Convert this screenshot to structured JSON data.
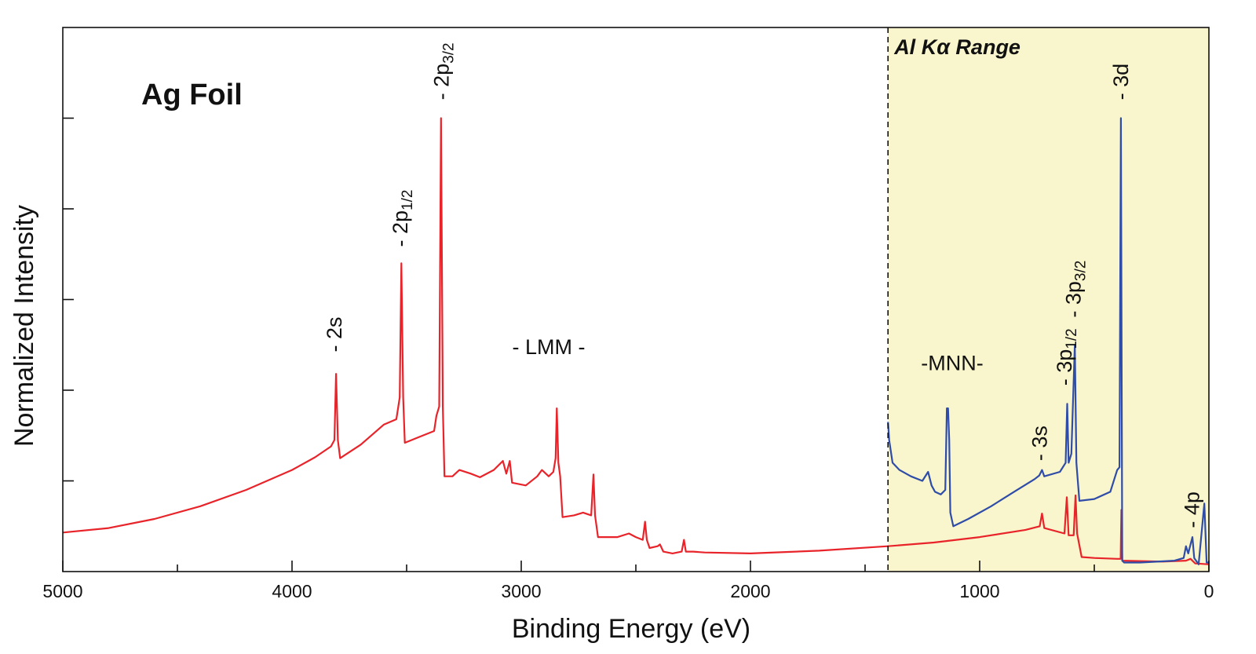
{
  "chart_data": {
    "type": "line",
    "title": "",
    "sample_label": "Ag Foil",
    "xlabel": "Binding Energy (eV)",
    "ylabel": "Normalized Intensity",
    "xlim": [
      5000,
      0
    ],
    "ylim": [
      0,
      6
    ],
    "x_ticks": [
      "5000",
      "4000",
      "3000",
      "2000",
      "1000",
      "0"
    ],
    "x_tick_values": [
      5000,
      4000,
      3000,
      2000,
      1000,
      0
    ],
    "y_tick_labels_shown": false,
    "grid": false,
    "highlight_region": {
      "label": "Al Kα Range",
      "x_from": 1400,
      "x_to": 0,
      "color": "#f9f5cc"
    },
    "series": [
      {
        "color": "#e8242a",
        "points": [
          [
            5000,
            0.43
          ],
          [
            4800,
            0.48
          ],
          [
            4600,
            0.58
          ],
          [
            4400,
            0.72
          ],
          [
            4200,
            0.9
          ],
          [
            4000,
            1.12
          ],
          [
            3900,
            1.26
          ],
          [
            3830,
            1.38
          ],
          [
            3815,
            1.45
          ],
          [
            3808,
            2.18
          ],
          [
            3800,
            1.45
          ],
          [
            3790,
            1.25
          ],
          [
            3700,
            1.4
          ],
          [
            3600,
            1.62
          ],
          [
            3545,
            1.68
          ],
          [
            3530,
            1.92
          ],
          [
            3523,
            3.4
          ],
          [
            3515,
            1.92
          ],
          [
            3508,
            1.42
          ],
          [
            3450,
            1.48
          ],
          [
            3380,
            1.55
          ],
          [
            3370,
            1.72
          ],
          [
            3358,
            1.82
          ],
          [
            3350,
            5.0
          ],
          [
            3342,
            1.82
          ],
          [
            3335,
            1.05
          ],
          [
            3300,
            1.05
          ],
          [
            3270,
            1.12
          ],
          [
            3220,
            1.08
          ],
          [
            3180,
            1.04
          ],
          [
            3120,
            1.12
          ],
          [
            3080,
            1.22
          ],
          [
            3065,
            1.08
          ],
          [
            3050,
            1.22
          ],
          [
            3040,
            0.98
          ],
          [
            2980,
            0.95
          ],
          [
            2930,
            1.05
          ],
          [
            2910,
            1.12
          ],
          [
            2880,
            1.05
          ],
          [
            2860,
            1.1
          ],
          [
            2850,
            1.25
          ],
          [
            2845,
            1.8
          ],
          [
            2838,
            1.2
          ],
          [
            2830,
            1.05
          ],
          [
            2820,
            0.6
          ],
          [
            2770,
            0.62
          ],
          [
            2730,
            0.65
          ],
          [
            2695,
            0.62
          ],
          [
            2685,
            1.07
          ],
          [
            2678,
            0.62
          ],
          [
            2665,
            0.38
          ],
          [
            2580,
            0.38
          ],
          [
            2530,
            0.42
          ],
          [
            2500,
            0.38
          ],
          [
            2470,
            0.35
          ],
          [
            2460,
            0.55
          ],
          [
            2452,
            0.35
          ],
          [
            2440,
            0.26
          ],
          [
            2405,
            0.28
          ],
          [
            2395,
            0.3
          ],
          [
            2380,
            0.22
          ],
          [
            2340,
            0.2
          ],
          [
            2300,
            0.22
          ],
          [
            2290,
            0.35
          ],
          [
            2282,
            0.22
          ],
          [
            2250,
            0.22
          ],
          [
            2200,
            0.21
          ],
          [
            2000,
            0.2
          ],
          [
            1700,
            0.23
          ],
          [
            1400,
            0.28
          ],
          [
            1200,
            0.32
          ],
          [
            1000,
            0.38
          ],
          [
            800,
            0.46
          ],
          [
            738,
            0.5
          ],
          [
            728,
            0.64
          ],
          [
            718,
            0.48
          ],
          [
            630,
            0.42
          ],
          [
            620,
            0.82
          ],
          [
            612,
            0.4
          ],
          [
            590,
            0.4
          ],
          [
            582,
            0.84
          ],
          [
            575,
            0.42
          ],
          [
            555,
            0.16
          ],
          [
            500,
            0.15
          ],
          [
            400,
            0.14
          ],
          [
            385,
            0.14
          ],
          [
            382,
            0.68
          ],
          [
            378,
            0.12
          ],
          [
            200,
            0.11
          ],
          [
            100,
            0.12
          ],
          [
            80,
            0.14
          ],
          [
            60,
            0.09
          ],
          [
            0,
            0.08
          ]
        ]
      },
      {
        "color": "#2e4ca8",
        "points": [
          [
            1400,
            1.65
          ],
          [
            1395,
            1.45
          ],
          [
            1380,
            1.2
          ],
          [
            1350,
            1.12
          ],
          [
            1300,
            1.05
          ],
          [
            1250,
            1.0
          ],
          [
            1225,
            1.1
          ],
          [
            1210,
            0.95
          ],
          [
            1195,
            0.88
          ],
          [
            1170,
            0.85
          ],
          [
            1150,
            0.9
          ],
          [
            1143,
            1.8
          ],
          [
            1138,
            1.8
          ],
          [
            1133,
            1.45
          ],
          [
            1128,
            0.65
          ],
          [
            1115,
            0.5
          ],
          [
            1050,
            0.58
          ],
          [
            950,
            0.72
          ],
          [
            850,
            0.88
          ],
          [
            760,
            1.02
          ],
          [
            740,
            1.06
          ],
          [
            728,
            1.12
          ],
          [
            718,
            1.05
          ],
          [
            650,
            1.1
          ],
          [
            625,
            1.2
          ],
          [
            618,
            1.85
          ],
          [
            612,
            1.2
          ],
          [
            600,
            1.3
          ],
          [
            585,
            2.5
          ],
          [
            578,
            1.2
          ],
          [
            565,
            0.78
          ],
          [
            500,
            0.8
          ],
          [
            430,
            0.88
          ],
          [
            400,
            1.12
          ],
          [
            390,
            1.15
          ],
          [
            384,
            5.0
          ],
          [
            378,
            0.12
          ],
          [
            370,
            0.1
          ],
          [
            300,
            0.1
          ],
          [
            150,
            0.12
          ],
          [
            110,
            0.15
          ],
          [
            100,
            0.28
          ],
          [
            90,
            0.2
          ],
          [
            80,
            0.3
          ],
          [
            72,
            0.38
          ],
          [
            64,
            0.15
          ],
          [
            45,
            0.08
          ],
          [
            20,
            0.75
          ],
          [
            10,
            0.1
          ],
          [
            0,
            0.1
          ]
        ]
      }
    ],
    "annotations": [
      {
        "text": "- 2s",
        "x": 3815,
        "y": 2.42,
        "rotated": true
      },
      {
        "text": "- 2p",
        "sub": "1/2",
        "x": 3528,
        "y": 3.58,
        "rotated": true
      },
      {
        "text": "- 2p",
        "sub": "3/2",
        "x": 3348,
        "y": 5.2,
        "rotated": true
      },
      {
        "text": "- LMM -",
        "x": 2880,
        "y": 2.4,
        "rotated": false
      },
      {
        "text": "-MNN-",
        "x": 1120,
        "y": 2.22,
        "rotated": false
      },
      {
        "text": "- 3s",
        "x": 738,
        "y": 1.22,
        "rotated": true
      },
      {
        "text": "- 3p",
        "sub": "1/2",
        "x": 630,
        "y": 2.05,
        "rotated": true
      },
      {
        "text": "- 3p",
        "sub": "3/2",
        "x": 590,
        "y": 2.8,
        "rotated": true
      },
      {
        "text": "- 3d",
        "x": 383,
        "y": 5.2,
        "rotated": true
      },
      {
        "text": "- 4p",
        "x": 73,
        "y": 0.48,
        "rotated": true
      }
    ]
  }
}
